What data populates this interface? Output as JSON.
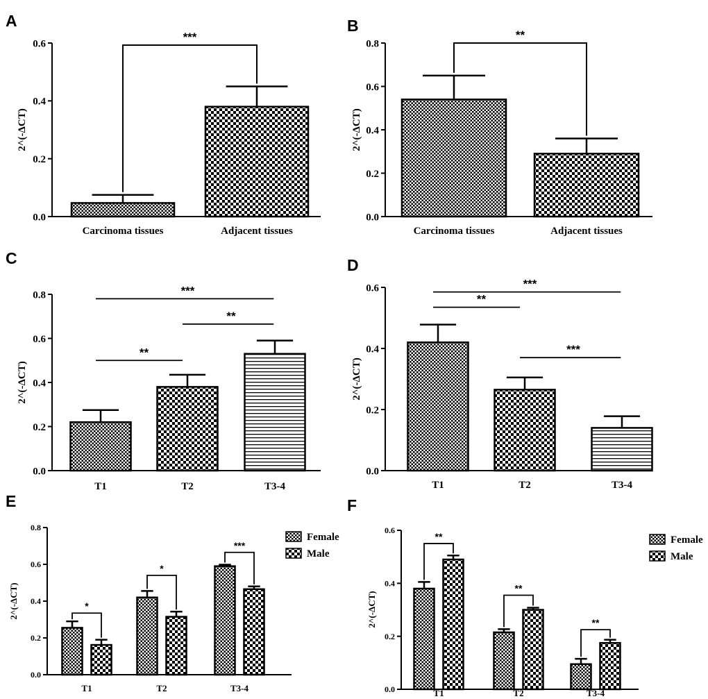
{
  "chart_data": [
    {
      "panel": "A",
      "type": "bar",
      "ylabel": "2^(-ΔCT)",
      "ylim": [
        0,
        0.6
      ],
      "yticks": [
        "0.0",
        "0.2",
        "0.4",
        "0.6"
      ],
      "categories": [
        "Carcinoma tissues",
        "Adjacent tissues"
      ],
      "values": [
        0.047,
        0.38
      ],
      "errors": [
        0.028,
        0.07
      ],
      "patterns": [
        "fine",
        "check"
      ],
      "significance": [
        {
          "from": 0,
          "to": 1,
          "label": "***",
          "style": "bracket"
        }
      ]
    },
    {
      "panel": "B",
      "type": "bar",
      "ylabel": "2^(-ΔCT)",
      "ylim": [
        0,
        0.8
      ],
      "yticks": [
        "0.0",
        "0.2",
        "0.4",
        "0.6",
        "0.8"
      ],
      "categories": [
        "Carcinoma tissues",
        "Adjacent tissues"
      ],
      "values": [
        0.54,
        0.29
      ],
      "errors": [
        0.11,
        0.07
      ],
      "patterns": [
        "fine",
        "check"
      ],
      "significance": [
        {
          "from": 0,
          "to": 1,
          "label": "**",
          "style": "bracket"
        }
      ]
    },
    {
      "panel": "C",
      "type": "bar",
      "ylabel": "2^(-ΔCT)",
      "ylim": [
        0,
        0.8
      ],
      "yticks": [
        "0.0",
        "0.2",
        "0.4",
        "0.6",
        "0.8"
      ],
      "categories": [
        "T1",
        "T2",
        "T3-4"
      ],
      "values": [
        0.22,
        0.38,
        0.53
      ],
      "errors": [
        0.055,
        0.055,
        0.06
      ],
      "patterns": [
        "fine",
        "check",
        "hlines"
      ],
      "significance": [
        {
          "from": 0,
          "to": 1,
          "label": "**",
          "y": 0.5
        },
        {
          "from": 1,
          "to": 2,
          "label": "**",
          "y": 0.665
        },
        {
          "from": 0,
          "to": 2,
          "label": "***",
          "y": 0.78
        }
      ]
    },
    {
      "panel": "D",
      "type": "bar",
      "ylabel": "2^(-ΔCT)",
      "ylim": [
        0,
        0.6
      ],
      "yticks": [
        "0.0",
        "0.2",
        "0.4",
        "0.6"
      ],
      "categories": [
        "T1",
        "T2",
        "T3-4"
      ],
      "values": [
        0.42,
        0.265,
        0.14
      ],
      "errors": [
        0.058,
        0.04,
        0.038
      ],
      "patterns": [
        "fine",
        "check",
        "hlines"
      ],
      "significance": [
        {
          "from": 0,
          "to": 1,
          "label": "**",
          "y": 0.535
        },
        {
          "from": 1,
          "to": 2,
          "label": "***",
          "y": 0.37
        },
        {
          "from": 0,
          "to": 2,
          "label": "***",
          "y": 0.585
        }
      ]
    },
    {
      "panel": "E",
      "type": "grouped-bar",
      "ylabel": "2^(-ΔCT)",
      "ylim": [
        0,
        0.8
      ],
      "yticks": [
        "0.0",
        "0.2",
        "0.4",
        "0.6",
        "0.8"
      ],
      "categories": [
        "T1",
        "T2",
        "T3-4"
      ],
      "series": [
        {
          "name": "Female",
          "pattern": "fine",
          "values": [
            0.255,
            0.42,
            0.59
          ],
          "errors": [
            0.035,
            0.035,
            0.008
          ]
        },
        {
          "name": "Male",
          "pattern": "check",
          "values": [
            0.162,
            0.315,
            0.465
          ],
          "errors": [
            0.028,
            0.028,
            0.015
          ]
        }
      ],
      "significance": [
        {
          "group": 0,
          "label": "*",
          "y": 0.335
        },
        {
          "group": 1,
          "label": "*",
          "y": 0.54
        },
        {
          "group": 2,
          "label": "***",
          "y": 0.665
        }
      ],
      "legend": "top-right"
    },
    {
      "panel": "F",
      "type": "grouped-bar",
      "ylabel": "2^(-ΔCT)",
      "ylim": [
        0,
        0.6
      ],
      "yticks": [
        "0.0",
        "0.2",
        "0.4",
        "0.6"
      ],
      "categories": [
        "T1",
        "T2",
        "T3-4"
      ],
      "series": [
        {
          "name": "Female",
          "pattern": "fine",
          "values": [
            0.38,
            0.215,
            0.095
          ],
          "errors": [
            0.025,
            0.012,
            0.02
          ]
        },
        {
          "name": "Male",
          "pattern": "check",
          "values": [
            0.49,
            0.3,
            0.175
          ],
          "errors": [
            0.015,
            0.008,
            0.012
          ]
        }
      ],
      "significance": [
        {
          "group": 0,
          "label": "**",
          "y": 0.55
        },
        {
          "group": 1,
          "label": "**",
          "y": 0.355
        },
        {
          "group": 2,
          "label": "**",
          "y": 0.225
        }
      ],
      "legend": "top-right"
    }
  ]
}
